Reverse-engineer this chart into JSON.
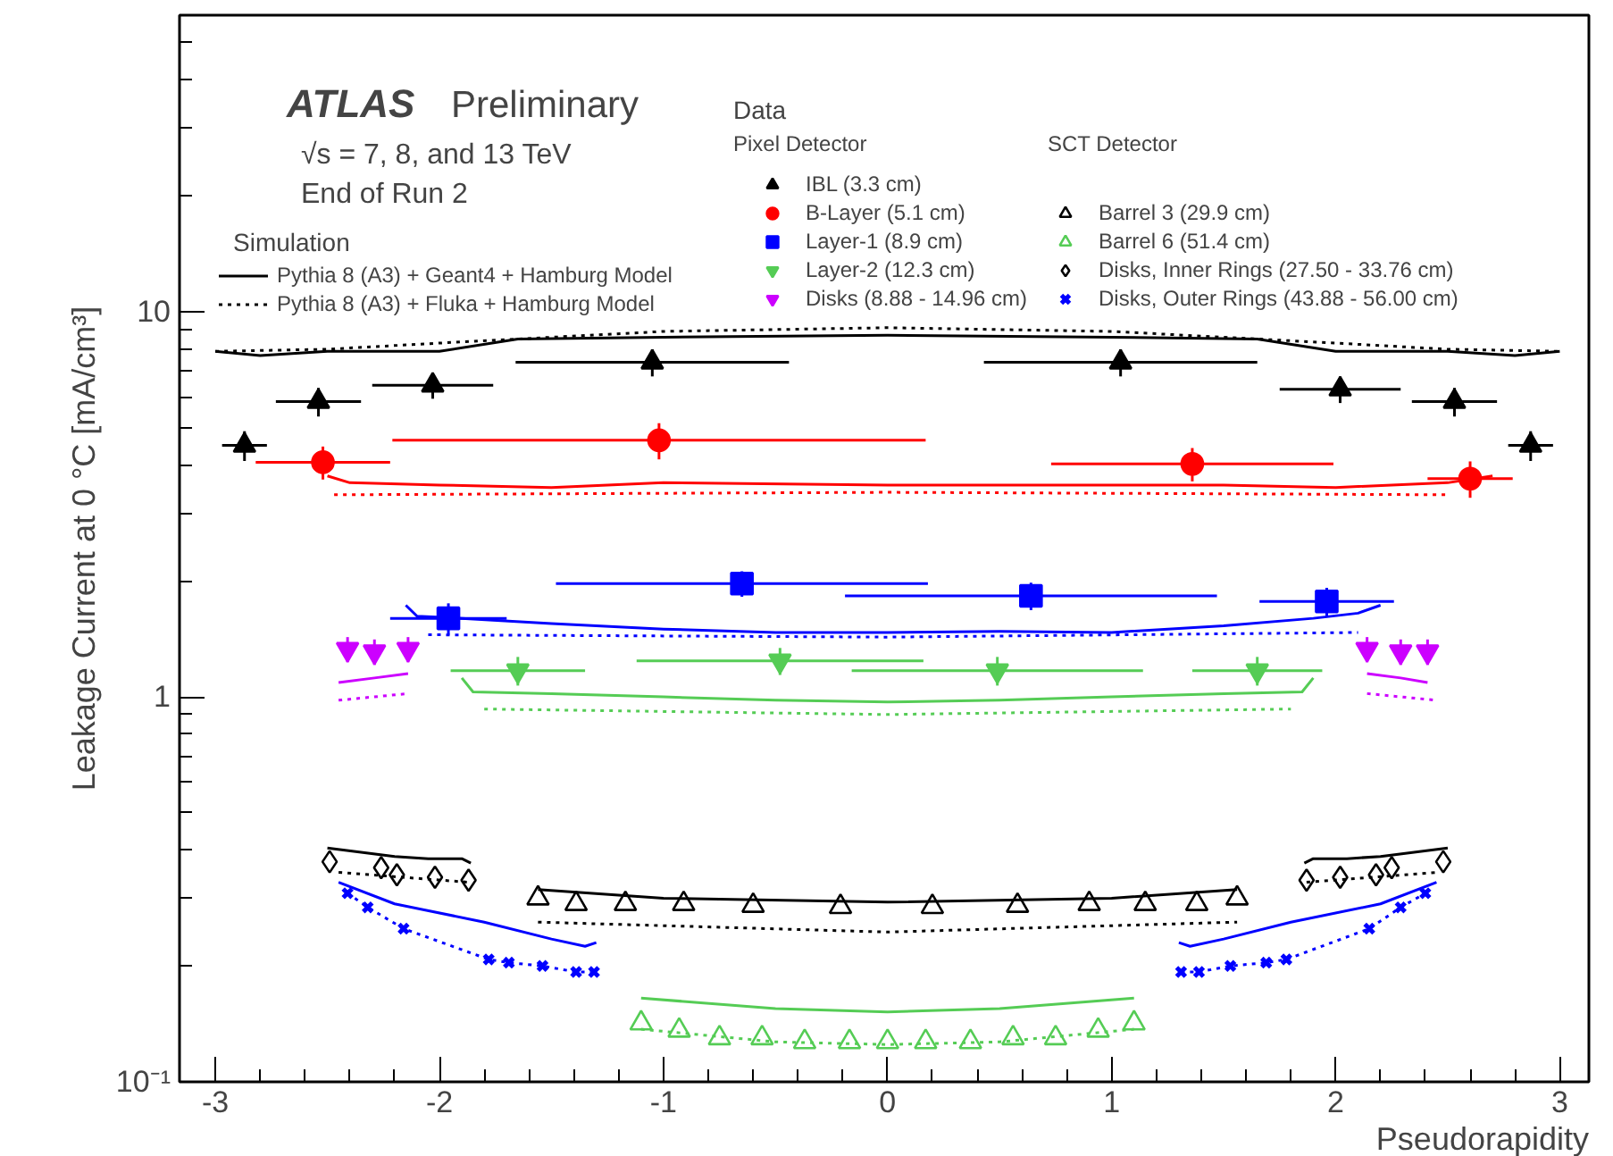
{
  "chart_data": {
    "type": "scatter",
    "xlabel": "Pseudorapidity",
    "ylabel": "Leakage Current at 0 °C [mA/cm³]",
    "xlim": [
      -3.16,
      3.13
    ],
    "xticks": [
      -3,
      -2,
      -1,
      0,
      1,
      2,
      3
    ],
    "ylim": [
      0.1,
      59
    ],
    "yticks": [
      {
        "value": 0.1,
        "label": "10⁻¹"
      },
      1,
      10
    ],
    "log": true,
    "grid": false,
    "legend": "top",
    "annotations": [
      "ATLAS",
      "Preliminary",
      "√s = 7, 8, and 13 TeV",
      "End of Run 2",
      "Simulation",
      "Data",
      "Pixel Detector",
      "SCT Detector"
    ],
    "series": [
      {
        "type": "line",
        "name": "Pythia 8 (A3) + Geant4 + Hamburg Model",
        "color": "#000000",
        "line_style": "solid",
        "x": [
          -3.0,
          -2.8,
          -2.5,
          -2.0,
          -1.65,
          -1,
          0,
          1,
          1.65,
          2,
          2.5,
          2.8,
          3.0
        ],
        "values": [
          7.9,
          7.7,
          7.9,
          7.9,
          8.5,
          8.6,
          8.7,
          8.6,
          8.5,
          7.9,
          7.9,
          7.7,
          7.9
        ]
      },
      {
        "type": "line",
        "name": "Pythia 8 (A3) + Fluka + Hamburg Model",
        "color": "#000000",
        "line_style": "dotted",
        "x": [
          -3.0,
          -2.5,
          -2,
          -1,
          0,
          1,
          2,
          2.5,
          3.0
        ],
        "values": [
          7.9,
          8.0,
          8.3,
          8.9,
          9.1,
          8.9,
          8.3,
          8.0,
          7.9
        ]
      },
      {
        "type": "scatter",
        "name": "IBL (3.3 cm)",
        "color": "#000000",
        "marker": "triangle",
        "x": [
          -2.87,
          -2.54,
          -2.03,
          -1.05,
          1.04,
          2.02,
          2.53,
          2.87
        ],
        "values": [
          4.5,
          5.85,
          6.45,
          7.4,
          7.4,
          6.3,
          5.85,
          4.5
        ],
        "xerrors": [
          0.1,
          0.19,
          0.27,
          0.61,
          0.61,
          0.27,
          0.19,
          0.1
        ],
        "errors": [
          0.4,
          0.5,
          0.5,
          0.6,
          0.6,
          0.5,
          0.5,
          0.4
        ]
      },
      {
        "type": "scatter",
        "name": "B-Layer (5.1 cm)",
        "color": "#ff0000",
        "marker": "circle",
        "x": [
          -2.52,
          -1.02,
          1.36,
          2.6
        ],
        "values": [
          4.07,
          4.64,
          4.03,
          3.69
        ],
        "xerrors": [
          0.3,
          1.19,
          0.63,
          0.19
        ],
        "errors": [
          0.4,
          0.5,
          0.4,
          0.4
        ]
      },
      {
        "type": "scatter",
        "name": "Layer-1 (8.9 cm)",
        "color": "#0000ff",
        "marker": "square",
        "x": [
          -1.96,
          -0.65,
          0.64,
          1.96
        ],
        "values": [
          1.6,
          1.97,
          1.83,
          1.77
        ],
        "xerrors": [
          0.26,
          0.83,
          0.83,
          0.3
        ],
        "errors": [
          0.15,
          0.15,
          0.15,
          0.15
        ]
      },
      {
        "type": "scatter",
        "name": "Layer-2 (12.3 cm)",
        "color": "#55cc55",
        "x": [
          -1.65,
          -0.48,
          0.49,
          1.65
        ],
        "values": [
          1.17,
          1.24,
          1.17,
          1.17
        ],
        "xerrors": [
          0.3,
          0.64,
          0.65,
          0.29
        ],
        "errors": [
          0.1,
          0.1,
          0.1,
          0.1
        ]
      },
      {
        "type": "scatter",
        "name": "Disks (8.88 - 14.96 cm)",
        "color": "#cc00ff",
        "x": [
          -2.41,
          -2.29,
          -2.14,
          2.14,
          2.29,
          2.41
        ],
        "values": [
          1.33,
          1.31,
          1.33,
          1.33,
          1.31,
          1.31
        ],
        "errors": [
          0.1,
          0.1,
          0.1,
          0.1,
          0.1,
          0.1
        ]
      },
      {
        "type": "scatter",
        "name": "Barrel 3 (29.9 cm)",
        "color": "#000000",
        "marker": "triangle_open",
        "x": [
          -1.56,
          -1.39,
          -1.17,
          -0.91,
          -0.6,
          -0.21,
          0.2,
          0.58,
          0.9,
          1.15,
          1.38,
          1.56
        ],
        "values": [
          0.3,
          0.29,
          0.29,
          0.29,
          0.287,
          0.285,
          0.285,
          0.287,
          0.29,
          0.29,
          0.29,
          0.3
        ]
      },
      {
        "type": "scatter",
        "name": "Barrel 6 (51.4 cm)",
        "color": "#55cc55",
        "marker": "triangle_open",
        "x": [
          -1.1,
          -0.93,
          -0.75,
          -0.56,
          -0.37,
          -0.17,
          0,
          0.17,
          0.37,
          0.56,
          0.75,
          0.94,
          1.1
        ],
        "values": [
          0.142,
          0.136,
          0.13,
          0.13,
          0.127,
          0.127,
          0.127,
          0.127,
          0.127,
          0.13,
          0.13,
          0.136,
          0.142
        ]
      },
      {
        "type": "scatter",
        "name": "Disks, Inner Rings (27.50 - 33.76 cm)",
        "color": "#000000",
        "marker": "diamond_open",
        "x": [
          -2.49,
          -2.26,
          -2.19,
          -2.02,
          -1.87,
          1.87,
          2.02,
          2.18,
          2.25,
          2.48
        ],
        "values": [
          0.373,
          0.36,
          0.345,
          0.34,
          0.334,
          0.334,
          0.34,
          0.345,
          0.36,
          0.373
        ]
      },
      {
        "type": "scatter",
        "name": "Disks, Outer Rings (43.88 - 56.00 cm)",
        "color": "#0000ff",
        "marker": "x",
        "x": [
          -2.41,
          -2.32,
          -2.16,
          -1.78,
          -1.69,
          -1.54,
          -1.39,
          -1.31,
          1.31,
          1.39,
          1.53,
          1.69,
          1.78,
          2.15,
          2.29,
          2.4
        ],
        "values": [
          0.309,
          0.284,
          0.25,
          0.208,
          0.204,
          0.2,
          0.193,
          0.193,
          0.193,
          0.193,
          0.2,
          0.204,
          0.208,
          0.25,
          0.284,
          0.309
        ]
      },
      {
        "type": "line",
        "color": "#ff0000",
        "line_style": "solid",
        "x": [
          -2.5,
          -2.4,
          -2,
          -1.5,
          -1,
          0,
          1,
          1.5,
          2,
          2.5,
          2.7
        ],
        "values": [
          3.75,
          3.6,
          3.55,
          3.5,
          3.6,
          3.55,
          3.55,
          3.55,
          3.5,
          3.6,
          3.75
        ]
      },
      {
        "type": "line",
        "color": "#ff0000",
        "line_style": "dotted",
        "x": [
          -2.47,
          0,
          2.5
        ],
        "values": [
          3.35,
          3.4,
          3.35
        ]
      },
      {
        "type": "line",
        "color": "#0000ff",
        "line_style": "solid",
        "x": [
          -2.15,
          -2.1,
          -1.9,
          -1.5,
          -1,
          -0.5,
          0,
          0.5,
          1,
          1.5,
          1.9,
          2.1,
          2.2
        ],
        "values": [
          1.73,
          1.62,
          1.6,
          1.55,
          1.5,
          1.47,
          1.47,
          1.48,
          1.47,
          1.53,
          1.6,
          1.65,
          1.73
        ]
      },
      {
        "type": "line",
        "color": "#0000ff",
        "line_style": "dotted",
        "x": [
          -2.05,
          0,
          2.1
        ],
        "values": [
          1.45,
          1.43,
          1.47
        ]
      },
      {
        "type": "line",
        "color": "#55cc55",
        "line_style": "solid",
        "x": [
          -1.9,
          -1.85,
          -1.5,
          -1,
          -0.5,
          0,
          0.5,
          1,
          1.5,
          1.85,
          1.9
        ],
        "values": [
          1.12,
          1.03,
          1.02,
          1.0,
          0.98,
          0.97,
          0.98,
          1.0,
          1.02,
          1.03,
          1.12
        ]
      },
      {
        "type": "line",
        "color": "#55cc55",
        "line_style": "dotted",
        "x": [
          -1.8,
          0,
          1.8
        ],
        "values": [
          0.93,
          0.9,
          0.93
        ]
      },
      {
        "type": "line",
        "color": "#cc00ff",
        "line_style": "solid",
        "x": [
          -2.45,
          -2.29,
          -2.14,
          0,
          2.14,
          2.29,
          2.41
        ],
        "values": [
          1.09,
          1.12,
          1.15,
          null,
          1.15,
          1.12,
          1.09
        ]
      },
      {
        "type": "line",
        "color": "#cc00ff",
        "line_style": "dotted",
        "x": [
          -2.45,
          -2.14,
          0,
          2.14,
          2.45
        ],
        "values": [
          0.98,
          1.02,
          null,
          1.02,
          0.98
        ]
      },
      {
        "type": "line",
        "color": "#000000",
        "line_style": "solid",
        "x": [
          -1.56,
          -1,
          0,
          1,
          1.56
        ],
        "values": [
          0.316,
          0.3,
          0.293,
          0.3,
          0.316
        ]
      },
      {
        "type": "line",
        "color": "#000000",
        "line_style": "dotted",
        "x": [
          -1.56,
          0,
          1.56
        ],
        "values": [
          0.26,
          0.245,
          0.26
        ]
      },
      {
        "type": "line",
        "color": "#55cc55",
        "line_style": "solid",
        "x": [
          -1.1,
          -0.5,
          0,
          0.5,
          1.1
        ],
        "values": [
          0.165,
          0.155,
          0.152,
          0.155,
          0.165
        ]
      },
      {
        "type": "line",
        "color": "#55cc55",
        "line_style": "dotted",
        "x": [
          -1.1,
          -0.5,
          0,
          0.5,
          1.1
        ],
        "values": [
          0.137,
          0.127,
          0.125,
          0.127,
          0.137
        ]
      },
      {
        "type": "line",
        "color": "#000000",
        "line_style": "solid",
        "x": [
          -2.5,
          -2.2,
          -2.05,
          -1.9,
          -1.86,
          0,
          1.86,
          1.9,
          2.05,
          2.2,
          2.5
        ],
        "values": [
          0.405,
          0.385,
          0.38,
          0.38,
          0.37,
          null,
          0.37,
          0.38,
          0.38,
          0.385,
          0.405
        ]
      },
      {
        "type": "line",
        "color": "#000000",
        "line_style": "dotted",
        "x": [
          -2.45,
          -1.87,
          0,
          1.87,
          2.45
        ],
        "values": [
          0.35,
          0.33,
          null,
          0.33,
          0.35
        ]
      },
      {
        "type": "line",
        "color": "#0000ff",
        "line_style": "solid",
        "x": [
          -2.45,
          -2.2,
          -1.8,
          -1.5,
          -1.35,
          -1.3,
          0,
          1.3,
          1.35,
          1.5,
          1.8,
          2.2,
          2.45
        ],
        "values": [
          0.33,
          0.29,
          0.26,
          0.235,
          0.225,
          0.23,
          null,
          0.23,
          0.225,
          0.235,
          0.26,
          0.29,
          0.33
        ]
      },
      {
        "type": "line",
        "color": "#0000ff",
        "line_style": "dotted",
        "x": [
          -2.41,
          -2.32,
          -2.16,
          -1.78,
          -1.69,
          -1.54,
          -1.39,
          -1.31,
          0,
          1.31,
          1.39,
          1.53,
          1.69,
          1.78,
          2.15,
          2.29,
          2.4
        ],
        "values": [
          0.309,
          0.284,
          0.25,
          0.208,
          0.204,
          0.2,
          0.193,
          0.193,
          null,
          0.193,
          0.193,
          0.2,
          0.204,
          0.208,
          0.25,
          0.284,
          0.309
        ]
      }
    ]
  }
}
